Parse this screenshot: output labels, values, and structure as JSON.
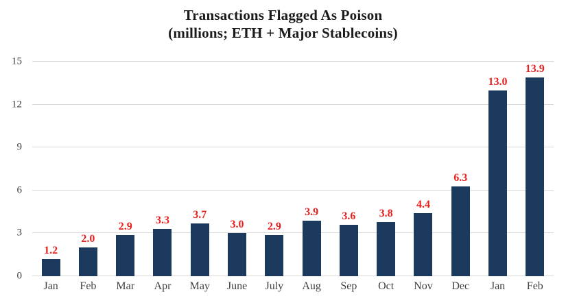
{
  "chart_data": {
    "type": "bar",
    "title": "Transactions Flagged As Poison",
    "subtitle": "(millions; ETH + Major Stablecoins)",
    "categories": [
      "Jan",
      "Feb",
      "Mar",
      "Apr",
      "May",
      "June",
      "July",
      "Aug",
      "Sep",
      "Oct",
      "Nov",
      "Dec",
      "Jan",
      "Feb"
    ],
    "values": [
      1.2,
      2.0,
      2.9,
      3.3,
      3.7,
      3.0,
      2.9,
      3.9,
      3.6,
      3.8,
      4.4,
      6.3,
      13.0,
      13.9
    ],
    "data_labels": [
      "1.2",
      "2.0",
      "2.9",
      "3.3",
      "3.7",
      "3.0",
      "2.9",
      "3.9",
      "3.6",
      "3.8",
      "4.4",
      "6.3",
      "13.0",
      "13.9"
    ],
    "xlabel": "",
    "ylabel": "",
    "y_ticks": [
      "0",
      "3",
      "6",
      "9",
      "12",
      "15"
    ],
    "y_tick_values": [
      0,
      3,
      6,
      9,
      12,
      15
    ],
    "ylim": [
      0,
      15
    ],
    "grid": "horizontal",
    "legend": "none",
    "colors": {
      "bar": "#1c3a5e",
      "data_label": "#e8201e",
      "axis_text": "#404040",
      "gridline": "#d9d9d9",
      "title_text": "#1b1b1b",
      "background": "#ffffff"
    }
  }
}
